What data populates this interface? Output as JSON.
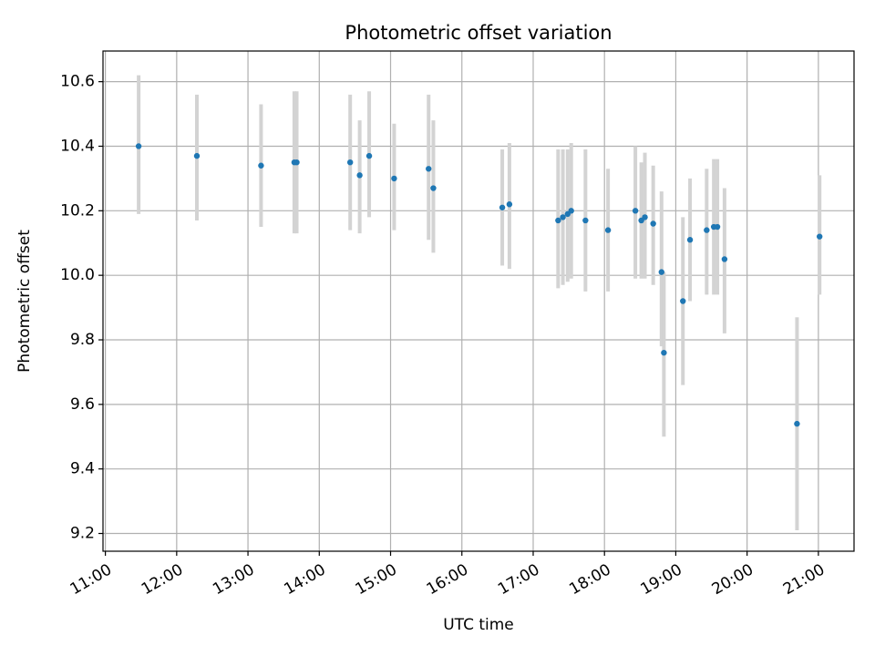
{
  "chart_data": {
    "type": "scatter",
    "title": "Photometric offset variation",
    "xlabel": "UTC time",
    "ylabel": "Photometric offset",
    "x_axis_type": "time",
    "xlim": [
      "10:58",
      "21:30"
    ],
    "ylim": [
      9.145,
      10.695
    ],
    "x_ticks": [
      "11:00",
      "12:00",
      "13:00",
      "14:00",
      "15:00",
      "16:00",
      "17:00",
      "18:00",
      "19:00",
      "20:00",
      "21:00"
    ],
    "y_ticks": [
      9.2,
      9.4,
      9.6,
      9.8,
      10.0,
      10.2,
      10.4,
      10.6
    ],
    "grid": true,
    "legend": "none",
    "colors": {
      "points": "#1f77b4",
      "errorbars": "#d3d3d3",
      "grid": "#b0b0b0"
    },
    "series": [
      {
        "points": [
          {
            "time": "11:28",
            "y": 10.4,
            "y_low": 10.19,
            "y_high": 10.62
          },
          {
            "time": "12:17",
            "y": 10.37,
            "y_low": 10.17,
            "y_high": 10.56
          },
          {
            "time": "13:11",
            "y": 10.34,
            "y_low": 10.15,
            "y_high": 10.53
          },
          {
            "time": "13:39",
            "y": 10.35,
            "y_low": 10.13,
            "y_high": 10.57
          },
          {
            "time": "13:41",
            "y": 10.35,
            "y_low": 10.13,
            "y_high": 10.57
          },
          {
            "time": "14:26",
            "y": 10.35,
            "y_low": 10.14,
            "y_high": 10.56
          },
          {
            "time": "14:34",
            "y": 10.31,
            "y_low": 10.13,
            "y_high": 10.48
          },
          {
            "time": "14:42",
            "y": 10.37,
            "y_low": 10.18,
            "y_high": 10.57
          },
          {
            "time": "15:03",
            "y": 10.3,
            "y_low": 10.14,
            "y_high": 10.47
          },
          {
            "time": "15:32",
            "y": 10.33,
            "y_low": 10.11,
            "y_high": 10.56
          },
          {
            "time": "15:36",
            "y": 10.27,
            "y_low": 10.07,
            "y_high": 10.48
          },
          {
            "time": "16:34",
            "y": 10.21,
            "y_low": 10.03,
            "y_high": 10.39
          },
          {
            "time": "16:40",
            "y": 10.22,
            "y_low": 10.02,
            "y_high": 10.41
          },
          {
            "time": "17:21",
            "y": 10.17,
            "y_low": 9.96,
            "y_high": 10.39
          },
          {
            "time": "17:25",
            "y": 10.18,
            "y_low": 9.97,
            "y_high": 10.39
          },
          {
            "time": "17:29",
            "y": 10.19,
            "y_low": 9.98,
            "y_high": 10.39
          },
          {
            "time": "17:32",
            "y": 10.2,
            "y_low": 9.99,
            "y_high": 10.41
          },
          {
            "time": "17:44",
            "y": 10.17,
            "y_low": 9.95,
            "y_high": 10.39
          },
          {
            "time": "18:03",
            "y": 10.14,
            "y_low": 9.95,
            "y_high": 10.33
          },
          {
            "time": "18:26",
            "y": 10.2,
            "y_low": 9.99,
            "y_high": 10.4
          },
          {
            "time": "18:31",
            "y": 10.17,
            "y_low": 9.99,
            "y_high": 10.35
          },
          {
            "time": "18:34",
            "y": 10.18,
            "y_low": 9.99,
            "y_high": 10.38
          },
          {
            "time": "18:41",
            "y": 10.16,
            "y_low": 9.97,
            "y_high": 10.34
          },
          {
            "time": "18:48",
            "y": 10.01,
            "y_low": 9.78,
            "y_high": 10.26
          },
          {
            "time": "18:50",
            "y": 9.76,
            "y_low": 9.5,
            "y_high": 10.01
          },
          {
            "time": "19:06",
            "y": 9.92,
            "y_low": 9.66,
            "y_high": 10.18
          },
          {
            "time": "19:12",
            "y": 10.11,
            "y_low": 9.92,
            "y_high": 10.3
          },
          {
            "time": "19:26",
            "y": 10.14,
            "y_low": 9.94,
            "y_high": 10.33
          },
          {
            "time": "19:32",
            "y": 10.15,
            "y_low": 9.94,
            "y_high": 10.36
          },
          {
            "time": "19:35",
            "y": 10.15,
            "y_low": 9.94,
            "y_high": 10.36
          },
          {
            "time": "19:41",
            "y": 10.05,
            "y_low": 9.82,
            "y_high": 10.27
          },
          {
            "time": "20:42",
            "y": 9.54,
            "y_low": 9.21,
            "y_high": 9.87
          },
          {
            "time": "21:01",
            "y": 10.12,
            "y_low": 9.94,
            "y_high": 10.31
          }
        ]
      }
    ]
  }
}
